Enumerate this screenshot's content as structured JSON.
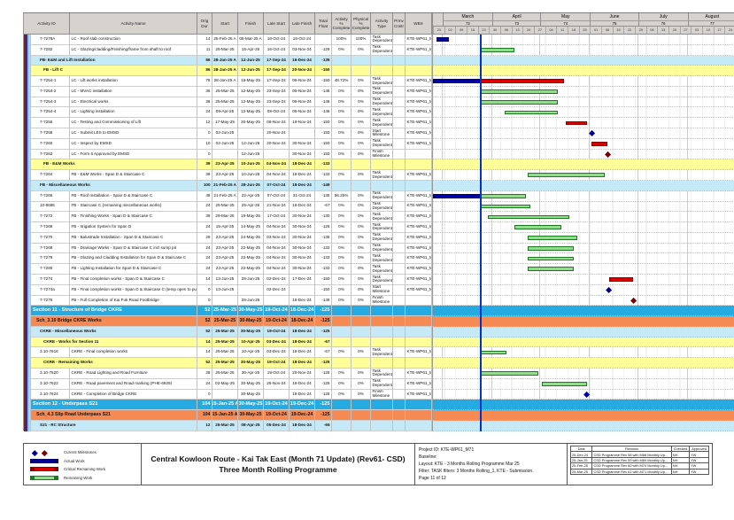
{
  "header": {
    "columns": [
      "Activity ID",
      "Activity Name",
      "Orig Dur",
      "Start",
      "Finish",
      "Late Start",
      "Late Finish",
      "Total Float",
      "Activity % Complete",
      "Physical % Complete",
      "Activity Type",
      "Prmv Cnstr",
      "WBS"
    ]
  },
  "timeline": {
    "start": "2025-02-23",
    "end": "2025-08-31",
    "data_date": "2025-03-25",
    "months": [
      {
        "name": "March",
        "num": "72",
        "start": "2025-03-01"
      },
      {
        "name": "April",
        "num": "73",
        "start": "2025-04-01"
      },
      {
        "name": "May",
        "num": "74",
        "start": "2025-05-01"
      },
      {
        "name": "June",
        "num": "75",
        "start": "2025-06-01"
      },
      {
        "name": "July",
        "num": "76",
        "start": "2025-07-01"
      },
      {
        "name": "August",
        "num": "77",
        "start": "2025-08-01"
      }
    ],
    "week_day_labels": [
      "23",
      "02",
      "09",
      "16",
      "23",
      "30",
      "06",
      "13",
      "20",
      "27",
      "04",
      "11",
      "18",
      "25",
      "01",
      "08",
      "15",
      "22",
      "29",
      "06",
      "13",
      "20",
      "27",
      "03",
      "10",
      "17",
      "24",
      "31"
    ]
  },
  "rows": [
    {
      "id": "7-7278A",
      "name": "LC - Roof slab construction",
      "dur": "14",
      "start": "25-Feb-25 A",
      "finish": "05-Mar-25 A",
      "ls": "16-Oct-24",
      "lf": "16-Oct-24",
      "tf": "",
      "ap": "100%",
      "pp": "100%",
      "type": "Task Dependent",
      "wbs": "KTE-WP61_M71.O",
      "band": null,
      "bars": [
        {
          "t": "actual",
          "s": "2025-02-25",
          "e": "2025-03-05"
        }
      ]
    },
    {
      "id": "7-7282",
      "name": "LC - Glazing/cladding/Finishing/frame from shaft to roof",
      "dur": "11",
      "start": "25-Mar-25",
      "finish": "15-Apr-25",
      "ls": "16-Oct-24",
      "lf": "03-Nov-24",
      "tf": "-129",
      "ap": "0%",
      "pp": "0%",
      "type": "Task Dependent",
      "wbs": "KTE-WP61_M71.O",
      "band": null,
      "bars": [
        {
          "t": "remaining",
          "s": "2025-03-25",
          "e": "2025-04-15"
        }
      ]
    },
    {
      "id": "",
      "name": "FB- E&M and Lift Installation",
      "dur": "86",
      "start": "28-Jan-25 A",
      "finish": "12-Jun-25",
      "ls": "17-Sep-24",
      "lf": "16-Dec-24",
      "tf": "-135",
      "ap": "",
      "pp": "",
      "type": "",
      "wbs": "",
      "band": "lightblue",
      "bars": []
    },
    {
      "id": "",
      "name": "FB - Lift C",
      "dur": "86",
      "start": "28-Jan-25 A",
      "finish": "12-Jun-25",
      "ls": "17-Sep-24",
      "lf": "20-Nov-24",
      "tf": "-150",
      "ap": "",
      "pp": "",
      "type": "",
      "wbs": "",
      "band": "yellow",
      "bars": []
    },
    {
      "id": "7-7254-1",
      "name": "LC - Lift works installation",
      "dur": "78",
      "start": "28-Jan-25 A",
      "finish": "16-May-25",
      "ls": "17-Sep-24",
      "lf": "05-Nov-24",
      "tf": "-150",
      "ap": "48.72%",
      "pp": "0%",
      "type": "Task Dependent",
      "wbs": "KTE-WP61_M71.O",
      "band": null,
      "bars": [
        {
          "t": "actual",
          "s": "2025-02-23",
          "e": "2025-03-25"
        },
        {
          "t": "critical",
          "s": "2025-03-25",
          "e": "2025-05-16"
        }
      ]
    },
    {
      "id": "7-7254-2",
      "name": "LC - MVAC installation",
      "dur": "36",
      "start": "25-Mar-25",
      "finish": "12-May-25",
      "ls": "23-Sep-24",
      "lf": "05-Nov-24",
      "tf": "-146",
      "ap": "0%",
      "pp": "0%",
      "type": "Task Dependent",
      "wbs": "KTE-WP61_M71.O",
      "band": null,
      "bars": [
        {
          "t": "remaining",
          "s": "2025-03-25",
          "e": "2025-05-12"
        }
      ]
    },
    {
      "id": "7-7254-3",
      "name": "LC - Electrical works",
      "dur": "36",
      "start": "25-Mar-25",
      "finish": "12-May-25",
      "ls": "23-Sep-24",
      "lf": "05-Nov-24",
      "tf": "-146",
      "ap": "0%",
      "pp": "0%",
      "type": "Task Dependent",
      "wbs": "KTE-WP61_M71.O",
      "band": null,
      "bars": [
        {
          "t": "remaining",
          "s": "2025-03-25",
          "e": "2025-05-12"
        }
      ]
    },
    {
      "id": "7-7254-4",
      "name": "LC - Lighting installation",
      "dur": "24",
      "start": "09-Apr-25",
      "finish": "12-May-25",
      "ls": "08-Oct-24",
      "lf": "05-Nov-24",
      "tf": "-146",
      "ap": "0%",
      "pp": "0%",
      "type": "Task Dependent",
      "wbs": "KTE-WP61_M71.O",
      "band": null,
      "bars": [
        {
          "t": "remaining",
          "s": "2025-04-09",
          "e": "2025-05-12"
        }
      ]
    },
    {
      "id": "7-7256",
      "name": "LC - Testing and Commissioning of Lift",
      "dur": "12",
      "start": "17-May-25",
      "finish": "30-May-25",
      "ls": "06-Nov-24",
      "lf": "19-Nov-24",
      "tf": "-150",
      "ap": "0%",
      "pp": "0%",
      "type": "Task Dependent",
      "wbs": "KTE-WP61_M71.O",
      "band": null,
      "bars": [
        {
          "t": "critical",
          "s": "2025-05-17",
          "e": "2025-05-30"
        }
      ]
    },
    {
      "id": "7-7258",
      "name": "LC - Submit LES to EMSD",
      "dur": "0",
      "start": "02-Jun-25",
      "finish": "",
      "ls": "20-Nov-24",
      "lf": "",
      "tf": "-150",
      "ap": "0%",
      "pp": "0%",
      "type": "Start Milestone",
      "wbs": "KTE-WP61_M71.O",
      "band": null,
      "bars": [
        {
          "t": "ms",
          "d": "2025-06-02",
          "c": "blue"
        }
      ]
    },
    {
      "id": "7-7260",
      "name": "LC - Inspect by EMSD",
      "dur": "10",
      "start": "02-Jun-25",
      "finish": "12-Jun-25",
      "ls": "20-Nov-24",
      "lf": "30-Nov-24",
      "tf": "-150",
      "ap": "0%",
      "pp": "0%",
      "type": "Task Dependent",
      "wbs": "KTE-WP61_M71.O",
      "band": null,
      "bars": [
        {
          "t": "critical",
          "s": "2025-06-02",
          "e": "2025-06-12"
        }
      ]
    },
    {
      "id": "7-7262",
      "name": "LC - Form 6 Approved by EMSD",
      "dur": "0",
      "start": "",
      "finish": "12-Jun-25",
      "ls": "",
      "lf": "30-Nov-24",
      "tf": "-150",
      "ap": "0%",
      "pp": "0%",
      "type": "Finish Milestone",
      "wbs": "",
      "band": null,
      "bars": [
        {
          "t": "ms",
          "d": "2025-06-12",
          "c": "maroon"
        }
      ]
    },
    {
      "id": "",
      "name": "FB - E&M Works",
      "dur": "39",
      "start": "23-Apr-25",
      "finish": "10-Jun-25",
      "ls": "04-Nov-24",
      "lf": "18-Dec-24",
      "tf": "-133",
      "ap": "",
      "pp": "",
      "type": "",
      "wbs": "",
      "band": "yellow",
      "bars": []
    },
    {
      "id": "7-7264",
      "name": "FB - E&M Works - Span D & Staircase C",
      "dur": "39",
      "start": "23-Apr-25",
      "finish": "10-Jun-25",
      "ls": "04-Nov-24",
      "lf": "18-Dec-24",
      "tf": "-133",
      "ap": "0%",
      "pp": "0%",
      "type": "Task Dependent",
      "wbs": "KTE-WP61_M71.O",
      "band": null,
      "bars": [
        {
          "t": "remaining",
          "s": "2025-04-23",
          "e": "2025-06-10"
        }
      ]
    },
    {
      "id": "",
      "name": "FB - Miscellaneous Works",
      "dur": "100",
      "start": "21-Feb-25 A",
      "finish": "28-Jun-25",
      "ls": "07-Oct-24",
      "lf": "18-Dec-24",
      "tf": "-149",
      "ap": "",
      "pp": "",
      "type": "",
      "wbs": "",
      "band": "lightblue",
      "bars": []
    },
    {
      "id": "7-7266",
      "name": "FB - Roof Installation - Span D & Staircase C",
      "dur": "48",
      "start": "21-Feb-25 A",
      "finish": "22-Apr-25",
      "ls": "07-Oct-24",
      "lf": "31-Oct-24",
      "tf": "-135",
      "ap": "56.25%",
      "pp": "0%",
      "type": "Task Dependent",
      "wbs": "KTE-WP61_M71.O",
      "band": null,
      "bars": [
        {
          "t": "actual",
          "s": "2025-02-23",
          "e": "2025-03-25"
        },
        {
          "t": "remaining",
          "s": "2025-03-25",
          "e": "2025-04-22"
        }
      ]
    },
    {
      "id": "10-8686",
      "name": "FB - Staircase C (remaining miscellaneous works)",
      "dur": "24",
      "start": "25-Mar-25",
      "finish": "25-Apr-25",
      "ls": "21-Nov-24",
      "lf": "18-Dec-24",
      "tf": "-67",
      "ap": "0%",
      "pp": "0%",
      "type": "Task Dependent",
      "wbs": "KTE-WP61_M71.O",
      "band": null,
      "bars": [
        {
          "t": "remaining",
          "s": "2025-03-25",
          "e": "2025-04-25"
        }
      ]
    },
    {
      "id": "7-7272",
      "name": "FB - Finishing Works - Span D & Staircase C",
      "dur": "39",
      "start": "29-Mar-25",
      "finish": "19-May-25",
      "ls": "17-Oct-24",
      "lf": "30-Nov-24",
      "tf": "-130",
      "ap": "0%",
      "pp": "0%",
      "type": "Task Dependent",
      "wbs": "KTE-WP61_M71.O",
      "band": null,
      "bars": [
        {
          "t": "remaining",
          "s": "2025-03-29",
          "e": "2025-05-19"
        }
      ]
    },
    {
      "id": "7-7269",
      "name": "FB - Irrigation System for Span D",
      "dur": "24",
      "start": "15-Apr-25",
      "finish": "14-May-25",
      "ls": "04-Nov-24",
      "lf": "30-Nov-24",
      "tf": "-126",
      "ap": "0%",
      "pp": "0%",
      "type": "Task Dependent",
      "wbs": "KTE-WP61_M71.O",
      "band": null,
      "bars": [
        {
          "t": "remaining",
          "s": "2025-04-15",
          "e": "2025-05-14"
        }
      ]
    },
    {
      "id": "7-7270",
      "name": "FB - Balustrade Installation - Span D & Staircase C",
      "dur": "26",
      "start": "23-Apr-25",
      "finish": "24-May-25",
      "ls": "03-Nov-24",
      "lf": "30-Nov-24",
      "tf": "-135",
      "ap": "0%",
      "pp": "0%",
      "type": "Task Dependent",
      "wbs": "KTE-WP61_M71.O",
      "band": null,
      "bars": [
        {
          "t": "remaining",
          "s": "2025-04-23",
          "e": "2025-05-24"
        }
      ]
    },
    {
      "id": "7-7268",
      "name": "FB - Drainage Works - Span D & Staircase C incl sump pit",
      "dur": "24",
      "start": "23-Apr-25",
      "finish": "22-May-25",
      "ls": "04-Nov-24",
      "lf": "30-Nov-24",
      "tf": "-133",
      "ap": "0%",
      "pp": "0%",
      "type": "Task Dependent",
      "wbs": "KTE-WP61_M71.O",
      "band": null,
      "bars": [
        {
          "t": "remaining",
          "s": "2025-04-23",
          "e": "2025-05-22"
        }
      ]
    },
    {
      "id": "7-7279",
      "name": "FB - Glazing and Cladding Installation for Span D & Staircase C",
      "dur": "24",
      "start": "23-Apr-25",
      "finish": "22-May-25",
      "ls": "04-Nov-24",
      "lf": "30-Nov-24",
      "tf": "-133",
      "ap": "0%",
      "pp": "0%",
      "type": "Task Dependent",
      "wbs": "KTE-WP61_M71.O",
      "band": null,
      "bars": [
        {
          "t": "remaining",
          "s": "2025-04-23",
          "e": "2025-05-22"
        }
      ]
    },
    {
      "id": "7-7280",
      "name": "FB - Lighting Installation for Span D & Staircase C",
      "dur": "24",
      "start": "23-Apr-25",
      "finish": "22-May-25",
      "ls": "04-Nov-24",
      "lf": "30-Nov-24",
      "tf": "-133",
      "ap": "0%",
      "pp": "0%",
      "type": "Task Dependent",
      "wbs": "KTE-WP61_M71.O",
      "band": null,
      "bars": [
        {
          "t": "remaining",
          "s": "2025-04-23",
          "e": "2025-05-22"
        }
      ]
    },
    {
      "id": "7-7274",
      "name": "FB - Final completion works - Span D & Staircase C",
      "dur": "14",
      "start": "13-Jun-25",
      "finish": "28-Jun-25",
      "ls": "02-Dec-24",
      "lf": "17-Dec-24",
      "tf": "-150",
      "ap": "0%",
      "pp": "0%",
      "type": "Task Dependent",
      "wbs": "KTE-WP61_M71.O",
      "band": null,
      "bars": [
        {
          "t": "critical",
          "s": "2025-06-13",
          "e": "2025-06-28"
        }
      ]
    },
    {
      "id": "7-7274a",
      "name": "FB - Final completion works - Span D & Staircase C (temp open to public)",
      "dur": "0",
      "start": "13-Jun-25",
      "finish": "",
      "ls": "02-Dec-24",
      "lf": "",
      "tf": "-150",
      "ap": "0%",
      "pp": "0%",
      "type": "Start Milestone",
      "wbs": "KTE-WP61_M71.O",
      "band": null,
      "bars": [
        {
          "t": "ms",
          "d": "2025-06-13",
          "c": "blue"
        }
      ]
    },
    {
      "id": "7-7276",
      "name": "FB - Full Completion of Kai Fuk Road Footbridge",
      "dur": "0",
      "start": "",
      "finish": "28-Jun-25",
      "ls": "",
      "lf": "18-Dec-24",
      "tf": "-149",
      "ap": "0%",
      "pp": "0%",
      "type": "Finish Milestone",
      "wbs": "",
      "band": null,
      "bars": [
        {
          "t": "ms",
          "d": "2025-06-28",
          "c": "maroon"
        }
      ]
    },
    {
      "id": "",
      "name": "Section 11 - Structure of Bridge CKRE",
      "dur": "52",
      "start": "25-Mar-25",
      "finish": "30-May-25",
      "ls": "19-Oct-24",
      "lf": "18-Dec-24",
      "tf": "-125",
      "ap": "",
      "pp": "",
      "type": "",
      "wbs": "",
      "band": "section",
      "bars": []
    },
    {
      "id": "",
      "name": "Sch_3.10 Bridge CKRE Works",
      "dur": "52",
      "start": "25-Mar-25",
      "finish": "30-May-25",
      "ls": "19-Oct-24",
      "lf": "18-Dec-24",
      "tf": "-125",
      "ap": "",
      "pp": "",
      "type": "",
      "wbs": "",
      "band": "orange",
      "bars": []
    },
    {
      "id": "",
      "name": "CKRE - Miscellaneous Works",
      "dur": "52",
      "start": "25-Mar-25",
      "finish": "30-May-25",
      "ls": "19-Oct-24",
      "lf": "18-Dec-24",
      "tf": "-125",
      "ap": "",
      "pp": "",
      "type": "",
      "wbs": "",
      "band": "lightblue",
      "bars": []
    },
    {
      "id": "",
      "name": "CKRE - Works for Section 11",
      "dur": "14",
      "start": "25-Mar-25",
      "finish": "10-Apr-25",
      "ls": "03-Dec-24",
      "lf": "18-Dec-24",
      "tf": "-67",
      "ap": "",
      "pp": "",
      "type": "",
      "wbs": "",
      "band": "yellow",
      "bars": []
    },
    {
      "id": "3.10-7616",
      "name": "CKRE - Final completion works",
      "dur": "14",
      "start": "25-Mar-25",
      "finish": "10-Apr-25",
      "ls": "03-Dec-24",
      "lf": "18-Dec-24",
      "tf": "-67",
      "ap": "0%",
      "pp": "0%",
      "type": "Task Dependent",
      "wbs": "KTE-WP61_M71.O",
      "band": null,
      "bars": [
        {
          "t": "remaining",
          "s": "2025-03-25",
          "e": "2025-04-10"
        }
      ]
    },
    {
      "id": "",
      "name": "CKRE - Remaining Works",
      "dur": "52",
      "start": "25-Mar-25",
      "finish": "30-May-25",
      "ls": "19-Oct-24",
      "lf": "18-Dec-24",
      "tf": "-125",
      "ap": "",
      "pp": "",
      "type": "",
      "wbs": "",
      "band": "yellow",
      "bars": []
    },
    {
      "id": "3.10-7620",
      "name": "CKRE - Road Lighting and Road Furniture",
      "dur": "28",
      "start": "25-Mar-25",
      "finish": "30-Apr-25",
      "ls": "19-Oct-24",
      "lf": "20-Nov-24",
      "tf": "-125",
      "ap": "0%",
      "pp": "0%",
      "type": "Task Dependent",
      "wbs": "KTE-WP61_M71.O",
      "band": null,
      "bars": [
        {
          "t": "remaining",
          "s": "2025-03-25",
          "e": "2025-04-30"
        }
      ]
    },
    {
      "id": "3.10-7622",
      "name": "CKRE - Road pavement and Road marking (PHE-6929)",
      "dur": "24",
      "start": "02-May-25",
      "finish": "30-May-25",
      "ls": "25-Nov-24",
      "lf": "18-Dec-24",
      "tf": "-125",
      "ap": "0%",
      "pp": "0%",
      "type": "Task Dependent",
      "wbs": "KTE-WP61_M71.O",
      "band": null,
      "bars": [
        {
          "t": "remaining",
          "s": "2025-05-02",
          "e": "2025-05-30"
        }
      ]
    },
    {
      "id": "3.10-7624",
      "name": "CKRE - Completion of Bridge CKRE",
      "dur": "0",
      "start": "",
      "finish": "30-May-25",
      "ls": "",
      "lf": "18-Dec-24",
      "tf": "-125",
      "ap": "0%",
      "pp": "0%",
      "type": "Finish Milestone",
      "wbs": "KTE-WP61_M71.O",
      "band": null,
      "bars": [
        {
          "t": "ms",
          "d": "2025-05-30",
          "c": "blue"
        }
      ]
    },
    {
      "id": "",
      "name": "Section 12 - Underpass S21",
      "dur": "104",
      "start": "15-Jan-25 A",
      "finish": "30-May-25",
      "ls": "19-Oct-24",
      "lf": "19-Dec-24",
      "tf": "-125",
      "ap": "",
      "pp": "",
      "type": "",
      "wbs": "",
      "band": "section",
      "bars": []
    },
    {
      "id": "",
      "name": "Sch_4.3 Slip Road Underpass S21",
      "dur": "104",
      "start": "15-Jan-25 A",
      "finish": "30-May-25",
      "ls": "19-Oct-24",
      "lf": "19-Dec-24",
      "tf": "-125",
      "ap": "",
      "pp": "",
      "type": "",
      "wbs": "",
      "band": "orange",
      "bars": []
    },
    {
      "id": "",
      "name": "S21 - RC Structure",
      "dur": "12",
      "start": "25-Mar-25",
      "finish": "08-Apr-25",
      "ls": "05-Dec-24",
      "lf": "18-Dec-24",
      "tf": "-65",
      "ap": "",
      "pp": "",
      "type": "",
      "wbs": "",
      "band": "lightblue",
      "bars": []
    }
  ],
  "footer": {
    "title_line1": "Central Kowloon Route - Kai Tak East (Month 71 Update) (Rev61- CSD)",
    "title_line2": "Three Month Rolling Programme",
    "project_id_label": "Project ID: KTE-WP61_M71",
    "baseline_label": "Baseline:",
    "layout_label": "Layout: KTE - 3 Months Rolling Programme Mar 25",
    "filter_label": "Filter: TASK filters: 3 Months Rolling_1, KTE - Submission.",
    "page_label": "Page 11 of 12",
    "legend": [
      {
        "type": "milestones",
        "label": "Current Milestones"
      },
      {
        "type": "actual",
        "label": "Actual Work"
      },
      {
        "type": "critical",
        "label": "Critical Remaining Work"
      },
      {
        "type": "remaining",
        "label": "Remaining Work"
      }
    ],
    "revision_table": {
      "headers": [
        "Date",
        "Revision",
        "Checked",
        "Approved"
      ],
      "rows": [
        [
          "25-Dec-24",
          "CSD Programme Rev 58 with M68 Monthly Up...",
          "NH",
          "YW"
        ],
        [
          "25-Jan-25",
          "CSD Programme Rev 59 with M69 Monthly Up...",
          "NH",
          "YW"
        ],
        [
          "25-Feb-25",
          "CSD Programme Rev 60 with M70 Monthly Up...",
          "NH",
          "YW"
        ],
        [
          "25-Mar-25",
          "CSD Programme Rev 61 with M71 Monthly Up...",
          "NH",
          "YW"
        ]
      ]
    }
  },
  "colors": {
    "band_lightblue": "#c6e9f8",
    "band_yellow": "#ffff99",
    "band_section": "#25aae1",
    "band_orange": "#f58a55",
    "bar_actual": "#00009e",
    "bar_critical": "#dd0000",
    "bar_remaining": "#93db8e",
    "milestone_blue": "#00009e",
    "milestone_maroon": "#7a0000",
    "data_date_line": "#0033cc",
    "stripe_colors": [
      "#7a1f1f",
      "#2233aa",
      "#86c8e8",
      "#f0e040"
    ]
  }
}
